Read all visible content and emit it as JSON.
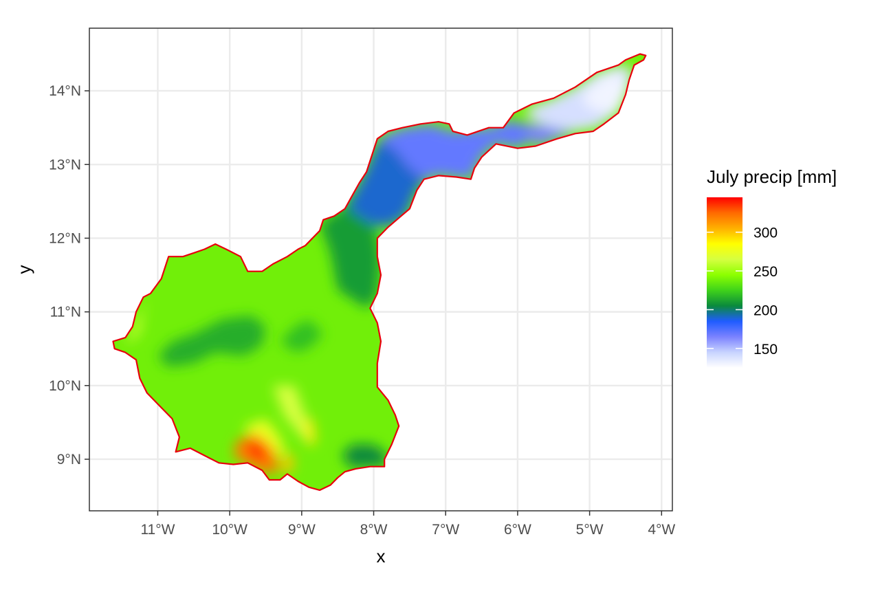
{
  "chart_data": {
    "type": "raster-map",
    "xlabel": "x",
    "ylabel": "y",
    "xlim": [
      -11.95,
      -3.85
    ],
    "ylim": [
      8.3,
      14.85
    ],
    "x_ticks": [
      {
        "value": -11,
        "label": "11°W"
      },
      {
        "value": -10,
        "label": "10°W"
      },
      {
        "value": -9,
        "label": "9°W"
      },
      {
        "value": -8,
        "label": "8°W"
      },
      {
        "value": -7,
        "label": "7°W"
      },
      {
        "value": -6,
        "label": "6°W"
      },
      {
        "value": -5,
        "label": "5°W"
      },
      {
        "value": -4,
        "label": "4°W"
      }
    ],
    "y_ticks": [
      {
        "value": 9,
        "label": "9°N"
      },
      {
        "value": 10,
        "label": "10°N"
      },
      {
        "value": 11,
        "label": "11°N"
      },
      {
        "value": 12,
        "label": "12°N"
      },
      {
        "value": 13,
        "label": "13°N"
      },
      {
        "value": 14,
        "label": "14°N"
      }
    ],
    "grid": true,
    "legend": {
      "title": "July precip [mm]",
      "position": "right",
      "range": [
        125,
        345
      ],
      "breaks": [
        150,
        200,
        250,
        300
      ],
      "colors": [
        "#ffffff",
        "#c8d4ff",
        "#7b82ff",
        "#1f5cff",
        "#0a8a3c",
        "#3fd21a",
        "#8cff00",
        "#d6ff40",
        "#ffff00",
        "#ffb000",
        "#ff6a00",
        "#ff0000"
      ]
    },
    "boundary_color": "#e8000b",
    "boundary": [
      [
        -11.6,
        10.5
      ],
      [
        -11.62,
        10.6
      ],
      [
        -11.45,
        10.65
      ],
      [
        -11.35,
        10.8
      ],
      [
        -11.3,
        11.0
      ],
      [
        -11.2,
        11.2
      ],
      [
        -11.1,
        11.25
      ],
      [
        -10.95,
        11.45
      ],
      [
        -10.85,
        11.75
      ],
      [
        -10.65,
        11.75
      ],
      [
        -10.5,
        11.8
      ],
      [
        -10.35,
        11.85
      ],
      [
        -10.2,
        11.92
      ],
      [
        -10.05,
        11.85
      ],
      [
        -9.85,
        11.75
      ],
      [
        -9.75,
        11.55
      ],
      [
        -9.55,
        11.55
      ],
      [
        -9.4,
        11.65
      ],
      [
        -9.2,
        11.75
      ],
      [
        -9.05,
        11.85
      ],
      [
        -8.95,
        11.9
      ],
      [
        -8.75,
        12.1
      ],
      [
        -8.7,
        12.25
      ],
      [
        -8.55,
        12.3
      ],
      [
        -8.4,
        12.4
      ],
      [
        -8.2,
        12.75
      ],
      [
        -8.1,
        12.9
      ],
      [
        -7.95,
        13.35
      ],
      [
        -7.8,
        13.45
      ],
      [
        -7.6,
        13.5
      ],
      [
        -7.35,
        13.55
      ],
      [
        -7.1,
        13.58
      ],
      [
        -6.95,
        13.55
      ],
      [
        -6.9,
        13.45
      ],
      [
        -6.7,
        13.4
      ],
      [
        -6.4,
        13.5
      ],
      [
        -6.2,
        13.5
      ],
      [
        -6.05,
        13.7
      ],
      [
        -5.8,
        13.82
      ],
      [
        -5.5,
        13.9
      ],
      [
        -5.2,
        14.05
      ],
      [
        -4.9,
        14.25
      ],
      [
        -4.6,
        14.35
      ],
      [
        -4.5,
        14.42
      ],
      [
        -4.3,
        14.5
      ],
      [
        -4.22,
        14.48
      ],
      [
        -4.25,
        14.42
      ],
      [
        -4.38,
        14.35
      ],
      [
        -4.45,
        14.15
      ],
      [
        -4.5,
        13.95
      ],
      [
        -4.6,
        13.7
      ],
      [
        -4.8,
        13.55
      ],
      [
        -4.95,
        13.45
      ],
      [
        -5.2,
        13.42
      ],
      [
        -5.45,
        13.35
      ],
      [
        -5.75,
        13.25
      ],
      [
        -6.0,
        13.22
      ],
      [
        -6.3,
        13.28
      ],
      [
        -6.5,
        13.1
      ],
      [
        -6.6,
        12.95
      ],
      [
        -6.65,
        12.8
      ],
      [
        -6.85,
        12.83
      ],
      [
        -7.1,
        12.85
      ],
      [
        -7.3,
        12.8
      ],
      [
        -7.4,
        12.65
      ],
      [
        -7.5,
        12.4
      ],
      [
        -7.62,
        12.3
      ],
      [
        -7.8,
        12.15
      ],
      [
        -7.95,
        12.0
      ],
      [
        -7.95,
        11.75
      ],
      [
        -7.9,
        11.5
      ],
      [
        -7.95,
        11.25
      ],
      [
        -8.05,
        11.05
      ],
      [
        -7.95,
        10.85
      ],
      [
        -7.9,
        10.6
      ],
      [
        -7.95,
        10.3
      ],
      [
        -7.95,
        9.98
      ],
      [
        -7.8,
        9.8
      ],
      [
        -7.7,
        9.6
      ],
      [
        -7.65,
        9.45
      ],
      [
        -7.75,
        9.2
      ],
      [
        -7.85,
        9.0
      ],
      [
        -7.85,
        8.9
      ],
      [
        -8.05,
        8.9
      ],
      [
        -8.25,
        8.87
      ],
      [
        -8.4,
        8.83
      ],
      [
        -8.5,
        8.75
      ],
      [
        -8.6,
        8.65
      ],
      [
        -8.75,
        8.58
      ],
      [
        -8.9,
        8.62
      ],
      [
        -9.05,
        8.7
      ],
      [
        -9.2,
        8.8
      ],
      [
        -9.3,
        8.72
      ],
      [
        -9.45,
        8.72
      ],
      [
        -9.55,
        8.85
      ],
      [
        -9.75,
        8.95
      ],
      [
        -9.95,
        8.93
      ],
      [
        -10.15,
        8.95
      ],
      [
        -10.35,
        9.05
      ],
      [
        -10.55,
        9.15
      ],
      [
        -10.75,
        9.1
      ],
      [
        -10.7,
        9.3
      ],
      [
        -10.8,
        9.55
      ],
      [
        -10.95,
        9.7
      ],
      [
        -11.15,
        9.9
      ],
      [
        -11.25,
        10.1
      ],
      [
        -11.3,
        10.35
      ],
      [
        -11.45,
        10.45
      ],
      [
        -11.6,
        10.5
      ]
    ],
    "regions": [
      {
        "value": 210,
        "points": [
          [
            -7.95,
            11.2
          ],
          [
            -8.1,
            11.05
          ],
          [
            -8.5,
            11.3
          ],
          [
            -8.6,
            11.8
          ],
          [
            -8.75,
            12.2
          ],
          [
            -8.45,
            12.4
          ],
          [
            -8.2,
            12.75
          ],
          [
            -8.0,
            12.3
          ],
          [
            -7.9,
            11.7
          ]
        ]
      },
      {
        "value": 190,
        "points": [
          [
            -8.35,
            12.4
          ],
          [
            -8.2,
            12.75
          ],
          [
            -8.1,
            12.95
          ],
          [
            -7.95,
            13.3
          ],
          [
            -7.7,
            13.35
          ],
          [
            -7.4,
            13.2
          ],
          [
            -7.2,
            12.9
          ],
          [
            -7.4,
            12.65
          ],
          [
            -7.55,
            12.3
          ],
          [
            -7.8,
            12.15
          ],
          [
            -8.05,
            12.2
          ]
        ]
      },
      {
        "value": 170,
        "points": [
          [
            -7.95,
            13.35
          ],
          [
            -7.6,
            13.5
          ],
          [
            -7.2,
            13.55
          ],
          [
            -6.9,
            13.45
          ],
          [
            -6.4,
            13.5
          ],
          [
            -6.1,
            13.6
          ],
          [
            -5.9,
            13.55
          ],
          [
            -5.7,
            13.4
          ],
          [
            -6.0,
            13.22
          ],
          [
            -6.3,
            13.28
          ],
          [
            -6.5,
            13.1
          ],
          [
            -6.65,
            12.8
          ],
          [
            -7.1,
            12.85
          ],
          [
            -7.3,
            12.8
          ],
          [
            -7.5,
            12.95
          ],
          [
            -7.7,
            13.2
          ]
        ]
      },
      {
        "value": 165,
        "points": [
          [
            -5.9,
            13.55
          ],
          [
            -5.6,
            13.52
          ],
          [
            -5.3,
            13.45
          ],
          [
            -5.2,
            13.42
          ],
          [
            -5.45,
            13.35
          ],
          [
            -5.75,
            13.25
          ],
          [
            -5.85,
            13.38
          ]
        ]
      },
      {
        "value": 140,
        "points": [
          [
            -5.9,
            13.75
          ],
          [
            -5.5,
            13.9
          ],
          [
            -5.2,
            14.05
          ],
          [
            -4.9,
            14.25
          ],
          [
            -4.6,
            14.35
          ],
          [
            -4.4,
            14.3
          ],
          [
            -4.45,
            14.0
          ],
          [
            -4.6,
            13.7
          ],
          [
            -4.9,
            13.5
          ],
          [
            -5.2,
            13.45
          ],
          [
            -5.5,
            13.5
          ],
          [
            -5.8,
            13.6
          ]
        ]
      },
      {
        "value": 130,
        "points": [
          [
            -5.1,
            13.95
          ],
          [
            -4.8,
            14.2
          ],
          [
            -4.55,
            14.25
          ],
          [
            -4.5,
            14.0
          ],
          [
            -4.6,
            13.75
          ],
          [
            -4.8,
            13.7
          ],
          [
            -5.05,
            13.8
          ]
        ]
      },
      {
        "value": 215,
        "points": [
          [
            -11.0,
            10.4
          ],
          [
            -10.85,
            10.25
          ],
          [
            -10.5,
            10.3
          ],
          [
            -10.2,
            10.45
          ],
          [
            -9.8,
            10.4
          ],
          [
            -9.55,
            10.55
          ],
          [
            -9.5,
            10.8
          ],
          [
            -9.7,
            10.95
          ],
          [
            -10.1,
            10.9
          ],
          [
            -10.5,
            10.7
          ],
          [
            -10.8,
            10.6
          ]
        ]
      },
      {
        "value": 220,
        "points": [
          [
            -9.3,
            10.6
          ],
          [
            -9.1,
            10.8
          ],
          [
            -8.9,
            10.9
          ],
          [
            -8.7,
            10.7
          ],
          [
            -8.9,
            10.5
          ],
          [
            -9.1,
            10.45
          ]
        ]
      },
      {
        "value": 205,
        "points": [
          [
            -8.45,
            9.05
          ],
          [
            -8.3,
            8.88
          ],
          [
            -8.05,
            8.9
          ],
          [
            -7.85,
            8.9
          ],
          [
            -7.8,
            9.05
          ],
          [
            -8.0,
            9.2
          ],
          [
            -8.3,
            9.2
          ]
        ]
      },
      {
        "value": 260,
        "points": [
          [
            -11.45,
            10.55
          ],
          [
            -11.3,
            10.9
          ],
          [
            -11.1,
            11.2
          ],
          [
            -11.2,
            11.0
          ],
          [
            -11.25,
            10.7
          ]
        ]
      },
      {
        "value": 265,
        "points": [
          [
            -9.4,
            10.0
          ],
          [
            -9.1,
            10.0
          ],
          [
            -8.95,
            9.6
          ],
          [
            -8.85,
            9.2
          ],
          [
            -9.0,
            9.3
          ],
          [
            -9.25,
            9.6
          ]
        ]
      },
      {
        "value": 275,
        "points": [
          [
            -9.8,
            9.45
          ],
          [
            -9.5,
            9.55
          ],
          [
            -9.3,
            9.3
          ],
          [
            -9.2,
            9.0
          ],
          [
            -9.45,
            9.1
          ],
          [
            -9.7,
            9.25
          ]
        ]
      },
      {
        "value": 320,
        "points": [
          [
            -9.9,
            9.25
          ],
          [
            -9.65,
            9.35
          ],
          [
            -9.4,
            9.15
          ],
          [
            -9.3,
            8.85
          ],
          [
            -9.5,
            8.8
          ],
          [
            -9.8,
            8.95
          ],
          [
            -9.95,
            9.05
          ]
        ]
      },
      {
        "value": 340,
        "points": [
          [
            -9.75,
            9.2
          ],
          [
            -9.6,
            9.25
          ],
          [
            -9.5,
            9.1
          ],
          [
            -9.55,
            8.98
          ],
          [
            -9.7,
            9.05
          ]
        ]
      },
      {
        "value": 300,
        "points": [
          [
            -9.3,
            8.85
          ],
          [
            -9.15,
            8.8
          ],
          [
            -9.1,
            9.0
          ],
          [
            -9.2,
            9.1
          ]
        ]
      },
      {
        "value": 290,
        "points": [
          [
            -8.95,
            9.55
          ],
          [
            -8.85,
            9.55
          ],
          [
            -8.8,
            9.25
          ],
          [
            -8.9,
            9.15
          ]
        ]
      }
    ]
  }
}
